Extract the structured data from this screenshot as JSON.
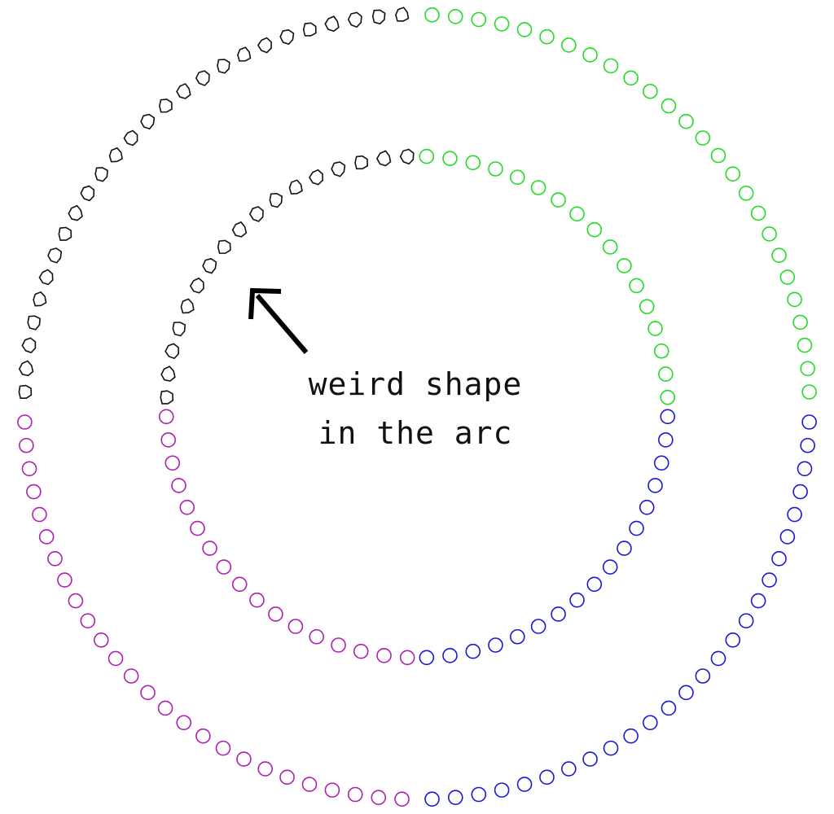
{
  "annotation": {
    "line1": "weird shape",
    "line2": "in the arc",
    "arrow_color": "#000000"
  },
  "arcs": [
    {
      "name": "outer-top-left",
      "color": "#111111",
      "ring": "outer",
      "quadrant": "top-left",
      "marker": "irregular",
      "count": 26
    },
    {
      "name": "inner-top-left",
      "color": "#111111",
      "ring": "inner",
      "quadrant": "top-left",
      "marker": "irregular",
      "count": 17
    },
    {
      "name": "outer-top-right",
      "color": "#22dd22",
      "ring": "outer",
      "quadrant": "top-right",
      "marker": "circle",
      "count": 26
    },
    {
      "name": "inner-top-right",
      "color": "#22dd22",
      "ring": "inner",
      "quadrant": "top-right",
      "marker": "circle",
      "count": 17
    },
    {
      "name": "inner-bottom-right",
      "color": "#1a1ad6",
      "ring": "inner",
      "quadrant": "bottom-right",
      "marker": "circle",
      "count": 17
    },
    {
      "name": "outer-bottom-right",
      "color": "#1a1ad6",
      "ring": "outer",
      "quadrant": "bottom-right",
      "marker": "circle",
      "count": 26
    },
    {
      "name": "inner-bottom-left",
      "color": "#b020b0",
      "ring": "inner",
      "quadrant": "bottom-left",
      "marker": "circle",
      "count": 17
    },
    {
      "name": "outer-bottom-left",
      "color": "#b020b0",
      "ring": "outer",
      "quadrant": "bottom-left",
      "marker": "circle",
      "count": 26
    }
  ]
}
